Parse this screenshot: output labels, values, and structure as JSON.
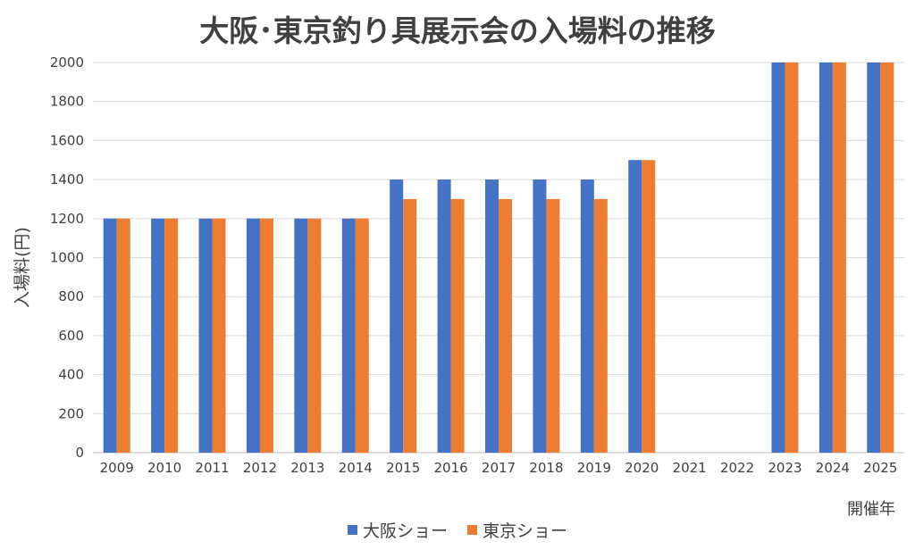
{
  "chart_data": {
    "type": "bar",
    "title": "大阪･東京釣り具展示会の入場料の推移",
    "xlabel": "開催年",
    "ylabel": "入場料(円)",
    "ylim": [
      0,
      2000
    ],
    "yticks": [
      0,
      200,
      400,
      600,
      800,
      1000,
      1200,
      1400,
      1600,
      1800,
      2000
    ],
    "grid": true,
    "legend_position": "bottom",
    "categories": [
      "2009",
      "2010",
      "2011",
      "2012",
      "2013",
      "2014",
      "2015",
      "2016",
      "2017",
      "2018",
      "2019",
      "2020",
      "2021",
      "2022",
      "2023",
      "2024",
      "2025"
    ],
    "series": [
      {
        "name": "大阪ショー",
        "color": "#4472C4",
        "values": [
          1200,
          1200,
          1200,
          1200,
          1200,
          1200,
          1400,
          1400,
          1400,
          1400,
          1400,
          1500,
          null,
          null,
          2000,
          2000,
          2000
        ]
      },
      {
        "name": "東京ショー",
        "color": "#ED7D31",
        "values": [
          1200,
          1200,
          1200,
          1200,
          1200,
          1200,
          1300,
          1300,
          1300,
          1300,
          1300,
          1500,
          null,
          null,
          2000,
          2000,
          2000
        ]
      }
    ]
  }
}
